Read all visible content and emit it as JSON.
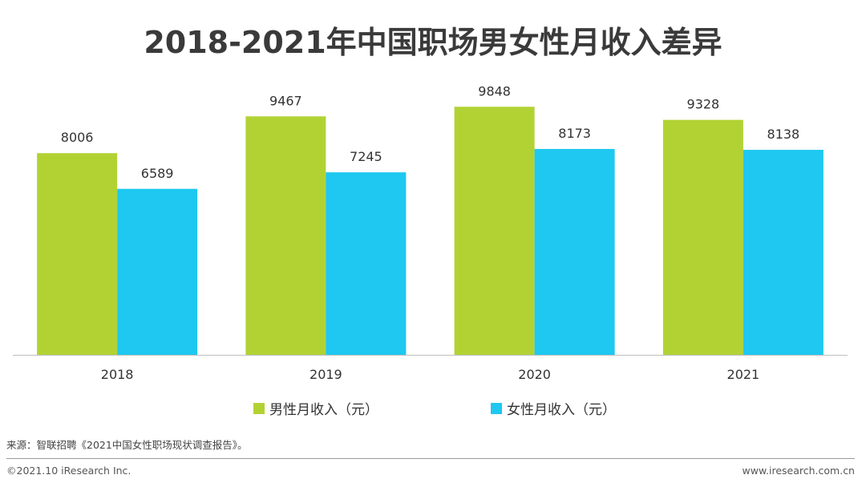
{
  "chart_data": {
    "type": "bar",
    "title": "2018-2021年中国职场男女性月收入差异",
    "categories": [
      "2018",
      "2019",
      "2020",
      "2021"
    ],
    "series": [
      {
        "name": "男性月收入（元）",
        "color": "#b2d234",
        "values": [
          8006,
          9467,
          9848,
          9328
        ]
      },
      {
        "name": "女性月收入（元）",
        "color": "#1ec8f0",
        "values": [
          6589,
          7245,
          8173,
          8138
        ]
      }
    ],
    "xlabel": "",
    "ylabel": "",
    "ylim": [
      0,
      13450
    ],
    "grid": false,
    "legend": "bottom"
  },
  "footer": {
    "source": "来源：智联招聘《2021中国女性职场现状调查报告》。",
    "copyright": "©2021.10 iResearch Inc.",
    "site": "www.iresearch.com.cn"
  }
}
